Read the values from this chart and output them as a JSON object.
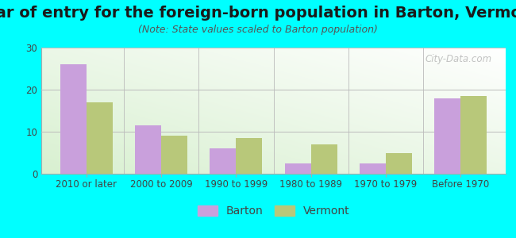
{
  "title": "Year of entry for the foreign-born population in Barton, Vermont",
  "subtitle": "(Note: State values scaled to Barton population)",
  "categories": [
    "2010 or later",
    "2000 to 2009",
    "1990 to 1999",
    "1980 to 1989",
    "1970 to 1979",
    "Before 1970"
  ],
  "barton_values": [
    26,
    11.5,
    6,
    2.5,
    2.5,
    18
  ],
  "vermont_values": [
    17,
    9,
    8.5,
    7,
    5,
    18.5
  ],
  "barton_color": "#c9a0dc",
  "vermont_color": "#b8c87a",
  "ylim": [
    0,
    30
  ],
  "yticks": [
    0,
    10,
    20,
    30
  ],
  "bg_color": "#00ffff",
  "bar_width": 0.35,
  "title_fontsize": 14,
  "subtitle_fontsize": 9,
  "tick_fontsize": 8.5,
  "legend_fontsize": 10,
  "watermark_text": "City-Data.com"
}
